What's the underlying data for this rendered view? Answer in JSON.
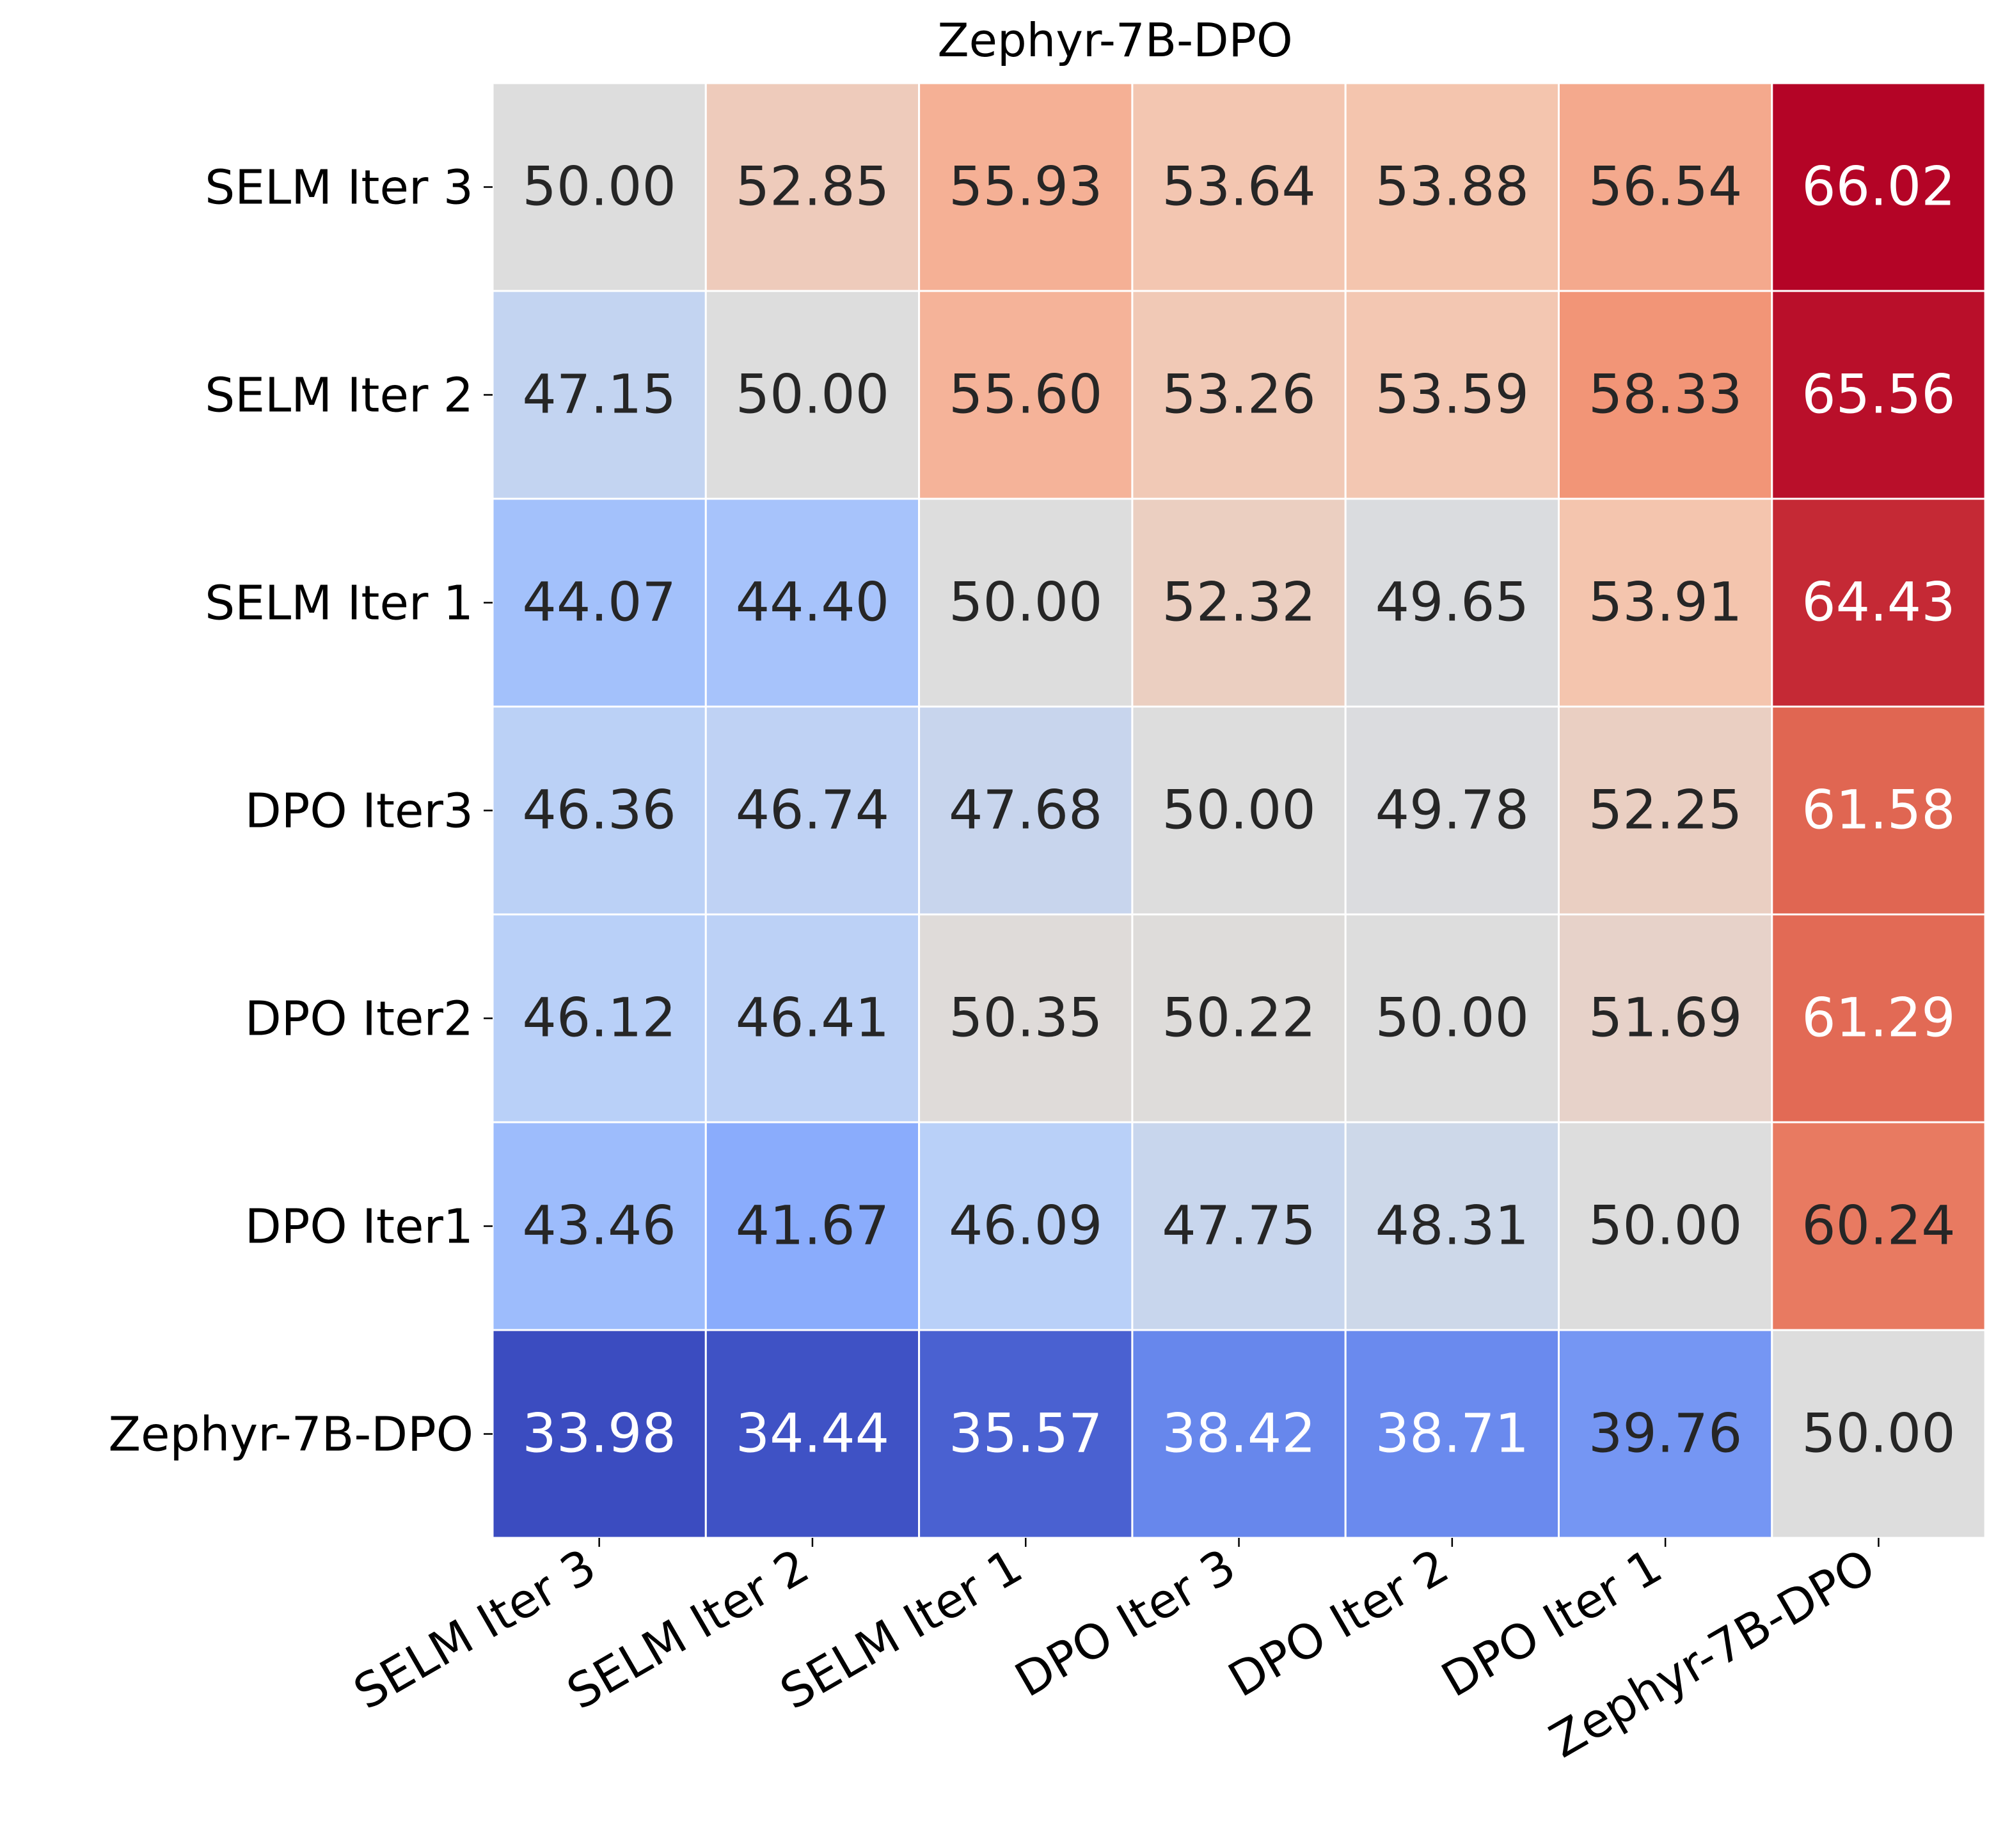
{
  "chart_data": {
    "type": "heatmap",
    "title": "Zephyr-7B-DPO",
    "xlabel": "",
    "ylabel": "",
    "x_categories": [
      "SELM Iter 3",
      "SELM Iter 2",
      "SELM Iter 1",
      "DPO Iter 3",
      "DPO Iter 2",
      "DPO Iter 1",
      "Zephyr-7B-DPO"
    ],
    "y_categories": [
      "SELM Iter 3",
      "SELM Iter 2",
      "SELM Iter 1",
      "DPO Iter3",
      "DPO Iter2",
      "DPO Iter1",
      "Zephyr-7B-DPO"
    ],
    "values": [
      [
        50.0,
        52.85,
        55.93,
        53.64,
        53.88,
        56.54,
        66.02
      ],
      [
        47.15,
        50.0,
        55.6,
        53.26,
        53.59,
        58.33,
        65.56
      ],
      [
        44.07,
        44.4,
        50.0,
        52.32,
        49.65,
        53.91,
        64.43
      ],
      [
        46.36,
        46.74,
        47.68,
        50.0,
        49.78,
        52.25,
        61.58
      ],
      [
        46.12,
        46.41,
        50.35,
        50.22,
        50.0,
        51.69,
        61.29
      ],
      [
        43.46,
        41.67,
        46.09,
        47.75,
        48.31,
        50.0,
        60.24
      ],
      [
        33.98,
        34.44,
        35.57,
        38.42,
        38.71,
        39.76,
        50.0
      ]
    ],
    "value_format_decimals": 2,
    "colormap": "coolwarm",
    "color_range": [
      33.98,
      66.02
    ],
    "colorbar": false,
    "grid": false,
    "legend": "none",
    "colors": {
      "cell_border": "#ffffff",
      "text_dark": "#262626",
      "text_light": "#ffffff",
      "label": "#000000"
    }
  }
}
